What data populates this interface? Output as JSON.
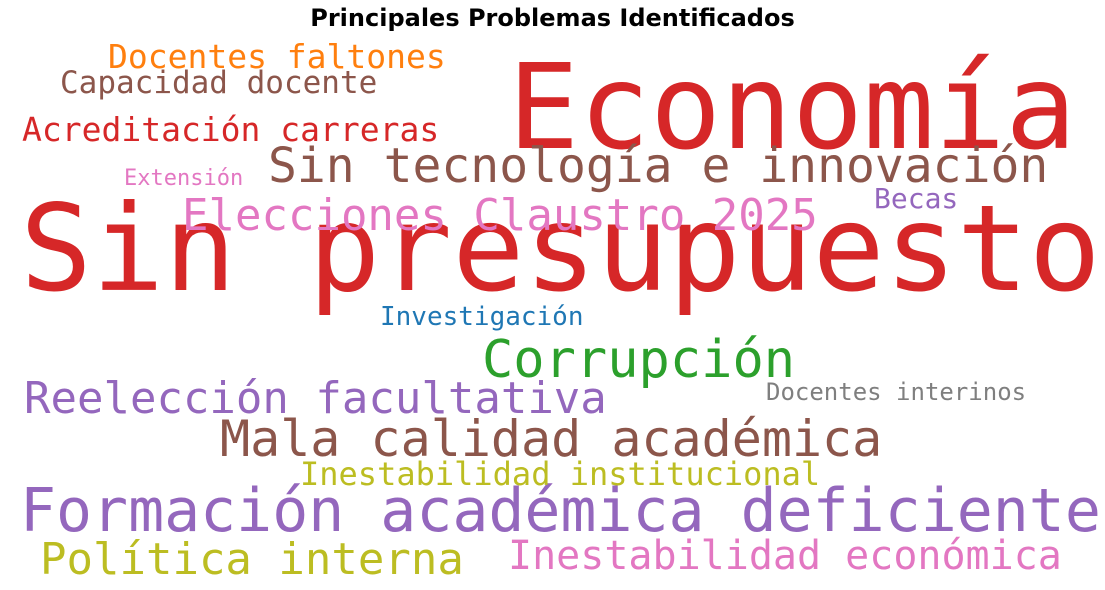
{
  "chart_data": {
    "type": "wordcloud",
    "title": "Principales Problemas Identificados",
    "words": [
      {
        "text": "Sin presupuesto",
        "color": "#d62728"
      },
      {
        "text": "Economía",
        "color": "#d62728"
      },
      {
        "text": "Formación académica deficiente",
        "color": "#9467bd"
      },
      {
        "text": "Sin tecnología e innovación",
        "color": "#8c564b"
      },
      {
        "text": "Mala calidad académica",
        "color": "#8c564b"
      },
      {
        "text": "Corrupción",
        "color": "#2ca02c"
      },
      {
        "text": "Elecciones Claustro 2025",
        "color": "#e377c2"
      },
      {
        "text": "Reelección facultativa",
        "color": "#9467bd"
      },
      {
        "text": "Política interna",
        "color": "#bcbd22"
      },
      {
        "text": "Inestabilidad económica",
        "color": "#e377c2"
      },
      {
        "text": "Acreditación carreras",
        "color": "#d62728"
      },
      {
        "text": "Docentes faltones",
        "color": "#ff7f0e"
      },
      {
        "text": "Capacidad docente",
        "color": "#8c564b"
      },
      {
        "text": "Inestabilidad institucional",
        "color": "#bcbd22"
      },
      {
        "text": "Investigación",
        "color": "#1f77b4"
      },
      {
        "text": "Becas",
        "color": "#9467bd"
      },
      {
        "text": "Docentes interinos",
        "color": "#7f7f7f"
      },
      {
        "text": "Extensión",
        "color": "#e377c2"
      }
    ]
  }
}
